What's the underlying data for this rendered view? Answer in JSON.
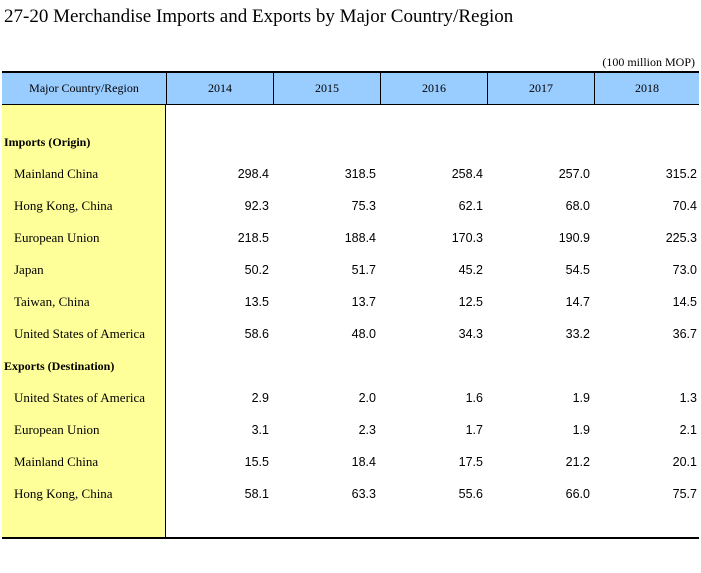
{
  "title": "27-20  Merchandise Imports and Exports by Major Country/Region",
  "unit": "(100 million MOP)",
  "header": {
    "stub": "Major Country/Region",
    "years": [
      "2014",
      "2015",
      "2016",
      "2017",
      "2018"
    ]
  },
  "rows": [
    {
      "label": "Imports (Origin)",
      "section": true,
      "values": []
    },
    {
      "label": "Mainland China",
      "section": false,
      "values": [
        "298.4",
        "318.5",
        "258.4",
        "257.0",
        "315.2"
      ]
    },
    {
      "label": "Hong Kong, China",
      "section": false,
      "values": [
        "92.3",
        "75.3",
        "62.1",
        "68.0",
        "70.4"
      ]
    },
    {
      "label": "European Union",
      "section": false,
      "values": [
        "218.5",
        "188.4",
        "170.3",
        "190.9",
        "225.3"
      ]
    },
    {
      "label": "Japan",
      "section": false,
      "values": [
        "50.2",
        "51.7",
        "45.2",
        "54.5",
        "73.0"
      ]
    },
    {
      "label": "Taiwan, China",
      "section": false,
      "values": [
        "13.5",
        "13.7",
        "12.5",
        "14.7",
        "14.5"
      ]
    },
    {
      "label": "United States of America",
      "section": false,
      "values": [
        "58.6",
        "48.0",
        "34.3",
        "33.2",
        "36.7"
      ]
    },
    {
      "label": "Exports (Destination)",
      "section": true,
      "values": []
    },
    {
      "label": "United States of America",
      "section": false,
      "values": [
        "2.9",
        "2.0",
        "1.6",
        "1.9",
        "1.3"
      ]
    },
    {
      "label": "European Union",
      "section": false,
      "values": [
        "3.1",
        "2.3",
        "1.7",
        "1.9",
        "2.1"
      ]
    },
    {
      "label": "Mainland China",
      "section": false,
      "values": [
        "15.5",
        "18.4",
        "17.5",
        "21.2",
        "20.1"
      ]
    },
    {
      "label": "Hong Kong, China",
      "section": false,
      "values": [
        "58.1",
        "63.3",
        "55.6",
        "66.0",
        "75.7"
      ]
    }
  ]
}
